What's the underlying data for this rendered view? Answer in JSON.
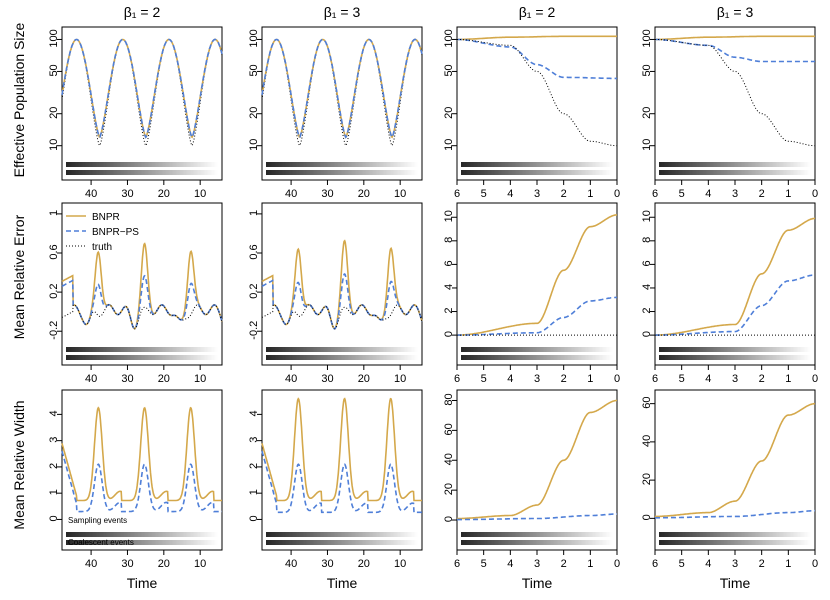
{
  "figure": {
    "x_label": "Time",
    "col_titles": [
      "β₁ = 2",
      "β₁ = 3",
      "β₁ = 2",
      "β₁ = 3"
    ],
    "row_labels": [
      "Effective Population Size",
      "Mean Relative Error",
      "Mean Relative Width"
    ],
    "legend": [
      "BNPR",
      "BNPR−PS",
      "truth"
    ],
    "strip_labels": [
      "Sampling events",
      "Coalescent events"
    ],
    "colors": {
      "bnpr": "#D4A84B",
      "bnpr_ps": "#4F7FD8",
      "truth": "#000000"
    }
  },
  "chart_data": [
    {
      "type": "line",
      "row": "Effective Population Size",
      "col_title": "β₁ = 2",
      "scale": "log",
      "x_ticks": [
        40,
        30,
        20,
        10
      ],
      "y_ticks": [
        10,
        20,
        50,
        100
      ],
      "x_range": [
        48,
        4
      ],
      "y_range": [
        8,
        115
      ],
      "series": [
        {
          "name": "truth",
          "values": [
            [
              47,
              13
            ],
            [
              44,
              100
            ],
            [
              37.5,
              10
            ],
            [
              31,
              100
            ],
            [
              24.7,
              10
            ],
            [
              18.3,
              100
            ],
            [
              12,
              10
            ],
            [
              5,
              100
            ]
          ]
        },
        {
          "name": "BNPR",
          "values": [
            [
              47,
              14
            ],
            [
              44,
              100
            ],
            [
              37.5,
              12
            ],
            [
              31,
              100
            ],
            [
              24.7,
              12
            ],
            [
              18.3,
              100
            ],
            [
              12,
              12
            ],
            [
              5,
              100
            ]
          ]
        },
        {
          "name": "BNPR−PS",
          "values": [
            [
              47,
              14
            ],
            [
              44,
              100
            ],
            [
              37.5,
              12
            ],
            [
              31,
              100
            ],
            [
              24.7,
              12
            ],
            [
              18.3,
              100
            ],
            [
              12,
              12
            ],
            [
              5,
              100
            ]
          ]
        }
      ]
    },
    {
      "type": "line",
      "row": "Effective Population Size",
      "col_title": "β₁ = 3",
      "scale": "log",
      "x_ticks": [
        40,
        30,
        20,
        10
      ],
      "y_ticks": [
        10,
        20,
        50,
        100
      ],
      "x_range": [
        48,
        4
      ],
      "y_range": [
        8,
        115
      ],
      "series": [
        {
          "name": "truth",
          "values": [
            [
              47,
              13
            ],
            [
              44,
              100
            ],
            [
              37.5,
              10
            ],
            [
              31,
              100
            ],
            [
              24.7,
              10
            ],
            [
              18.3,
              100
            ],
            [
              12,
              10
            ],
            [
              5,
              100
            ]
          ]
        },
        {
          "name": "BNPR",
          "values": [
            [
              47,
              14
            ],
            [
              44,
              100
            ],
            [
              37.5,
              12
            ],
            [
              31,
              100
            ],
            [
              24.7,
              12
            ],
            [
              18.3,
              100
            ],
            [
              12,
              12
            ],
            [
              5,
              100
            ]
          ]
        },
        {
          "name": "BNPR−PS",
          "values": [
            [
              47,
              14
            ],
            [
              44,
              100
            ],
            [
              37.5,
              12
            ],
            [
              31,
              100
            ],
            [
              24.7,
              12
            ],
            [
              18.3,
              100
            ],
            [
              12,
              12
            ],
            [
              5,
              100
            ]
          ]
        }
      ]
    },
    {
      "type": "line",
      "row": "Effective Population Size",
      "col_title": "β₁ = 2",
      "scale": "log",
      "x_ticks": [
        6,
        5,
        4,
        3,
        2,
        1,
        0
      ],
      "y_ticks": [
        10,
        20,
        50,
        100
      ],
      "x_range": [
        6,
        0
      ],
      "y_range": [
        8,
        115
      ],
      "series": [
        {
          "name": "BNPR",
          "values": [
            [
              6,
              100
            ],
            [
              4,
              105
            ],
            [
              2,
              107
            ],
            [
              0,
              107
            ]
          ]
        },
        {
          "name": "BNPR−PS",
          "values": [
            [
              6,
              100
            ],
            [
              4,
              85
            ],
            [
              3,
              58
            ],
            [
              2,
              44
            ],
            [
              0,
              43
            ]
          ]
        },
        {
          "name": "truth",
          "values": [
            [
              6,
              100
            ],
            [
              4,
              88
            ],
            [
              3,
              50
            ],
            [
              2,
              20
            ],
            [
              1,
              11
            ],
            [
              0,
              10
            ]
          ]
        }
      ]
    },
    {
      "type": "line",
      "row": "Effective Population Size",
      "col_title": "β₁ = 3",
      "scale": "log",
      "x_ticks": [
        6,
        5,
        4,
        3,
        2,
        1,
        0
      ],
      "y_ticks": [
        10,
        20,
        50,
        100
      ],
      "x_range": [
        6,
        0
      ],
      "y_range": [
        8,
        115
      ],
      "series": [
        {
          "name": "BNPR",
          "values": [
            [
              6,
              100
            ],
            [
              4,
              105
            ],
            [
              2,
              107
            ],
            [
              0,
              107
            ]
          ]
        },
        {
          "name": "BNPR−PS",
          "values": [
            [
              6,
              100
            ],
            [
              4,
              88
            ],
            [
              3,
              68
            ],
            [
              2,
              62
            ],
            [
              0,
              62
            ]
          ]
        },
        {
          "name": "truth",
          "values": [
            [
              6,
              100
            ],
            [
              4,
              88
            ],
            [
              3,
              50
            ],
            [
              2,
              20
            ],
            [
              1,
              11
            ],
            [
              0,
              10
            ]
          ]
        }
      ]
    },
    {
      "type": "line",
      "row": "Mean Relative Error",
      "col_title": "β₁ = 2",
      "x_ticks": [
        40,
        30,
        20,
        10
      ],
      "y_ticks": [
        -0.2,
        0.2,
        0.6,
        1.0
      ],
      "x_range": [
        48,
        4
      ],
      "y_range": [
        -0.3,
        1.05
      ],
      "series": [
        {
          "name": "BNPR",
          "values": [
            [
              47,
              0.37
            ],
            [
              38,
              0.65
            ],
            [
              25,
              0.65
            ],
            [
              12,
              0.65
            ],
            [
              5,
              0
            ]
          ]
        },
        {
          "name": "BNPR−PS",
          "values": [
            [
              47,
              0.32
            ],
            [
              38,
              0.32
            ],
            [
              25,
              0.32
            ],
            [
              12,
              0.32
            ],
            [
              5,
              0
            ]
          ]
        },
        {
          "name": "truth",
          "values": [
            [
              48,
              0
            ],
            [
              4,
              0
            ]
          ]
        }
      ]
    },
    {
      "type": "line",
      "row": "Mean Relative Error",
      "col_title": "β₁ = 3",
      "x_ticks": [
        40,
        30,
        20,
        10
      ],
      "y_ticks": [
        -0.2,
        0.2,
        0.6,
        1.0
      ],
      "x_range": [
        48,
        4
      ],
      "y_range": [
        -0.3,
        1.05
      ],
      "series": [
        {
          "name": "BNPR",
          "values": [
            [
              47,
              0.37
            ],
            [
              38,
              0.68
            ],
            [
              25,
              0.66
            ],
            [
              12,
              0.66
            ],
            [
              5,
              0
            ]
          ]
        },
        {
          "name": "BNPR−PS",
          "values": [
            [
              47,
              0.32
            ],
            [
              38,
              0.34
            ],
            [
              25,
              0.31
            ],
            [
              12,
              0.31
            ],
            [
              5,
              0
            ]
          ]
        },
        {
          "name": "truth",
          "values": [
            [
              48,
              0
            ],
            [
              4,
              0
            ]
          ]
        }
      ]
    },
    {
      "type": "line",
      "row": "Mean Relative Error",
      "col_title": "β₁ = 2",
      "x_ticks": [
        6,
        5,
        4,
        3,
        2,
        1,
        0
      ],
      "y_ticks": [
        0,
        2,
        4,
        6,
        8,
        10
      ],
      "x_range": [
        6,
        0
      ],
      "y_range": [
        -0.5,
        10.7
      ],
      "series": [
        {
          "name": "BNPR",
          "values": [
            [
              6,
              0
            ],
            [
              3,
              1.0
            ],
            [
              2,
              5.5
            ],
            [
              1,
              9.2
            ],
            [
              0,
              10.2
            ]
          ]
        },
        {
          "name": "BNPR−PS",
          "values": [
            [
              6,
              0
            ],
            [
              3,
              0.2
            ],
            [
              2,
              1.5
            ],
            [
              1,
              2.9
            ],
            [
              0,
              3.2
            ]
          ]
        },
        {
          "name": "truth",
          "values": [
            [
              6,
              0
            ],
            [
              0,
              0
            ]
          ]
        }
      ]
    },
    {
      "type": "line",
      "row": "Mean Relative Error",
      "col_title": "β₁ = 3",
      "x_ticks": [
        6,
        5,
        4,
        3,
        2,
        1,
        0
      ],
      "y_ticks": [
        0,
        2,
        4,
        6,
        8,
        10
      ],
      "x_range": [
        6,
        0
      ],
      "y_range": [
        -0.5,
        10.7
      ],
      "series": [
        {
          "name": "BNPR",
          "values": [
            [
              6,
              0
            ],
            [
              3,
              0.9
            ],
            [
              2,
              5.2
            ],
            [
              1,
              8.9
            ],
            [
              0,
              9.9
            ]
          ]
        },
        {
          "name": "BNPR−PS",
          "values": [
            [
              6,
              0
            ],
            [
              3,
              0.3
            ],
            [
              2,
              2.5
            ],
            [
              1,
              4.6
            ],
            [
              0,
              5.1
            ]
          ]
        },
        {
          "name": "truth",
          "values": [
            [
              6,
              0
            ],
            [
              0,
              0
            ]
          ]
        }
      ]
    },
    {
      "type": "line",
      "row": "Mean Relative Width",
      "col_title": "β₁ = 2",
      "x_ticks": [
        40,
        30,
        20,
        10
      ],
      "y_ticks": [
        0,
        1,
        2,
        3,
        4
      ],
      "x_range": [
        48,
        4
      ],
      "y_range": [
        -0.25,
        4.7
      ],
      "series": [
        {
          "name": "BNPR",
          "values": [
            [
              47,
              2.4
            ],
            [
              38,
              4.25
            ],
            [
              25,
              4.25
            ],
            [
              12,
              4.25
            ],
            [
              5,
              1.2
            ]
          ]
        },
        {
          "name": "BNPR−PS",
          "values": [
            [
              47,
              2.1
            ],
            [
              38,
              1.8
            ],
            [
              25,
              1.8
            ],
            [
              12,
              1.8
            ],
            [
              5,
              0.5
            ]
          ]
        }
      ]
    },
    {
      "type": "line",
      "row": "Mean Relative Width",
      "col_title": "β₁ = 3",
      "x_ticks": [
        40,
        30,
        20,
        10
      ],
      "y_ticks": [
        0,
        1,
        2,
        3,
        4
      ],
      "x_range": [
        48,
        4
      ],
      "y_range": [
        -0.25,
        4.7
      ],
      "series": [
        {
          "name": "BNPR",
          "values": [
            [
              47,
              2.4
            ],
            [
              38,
              4.6
            ],
            [
              25,
              4.4
            ],
            [
              12,
              4.3
            ],
            [
              5,
              1.2
            ]
          ]
        },
        {
          "name": "BNPR−PS",
          "values": [
            [
              47,
              2.1
            ],
            [
              38,
              1.95
            ],
            [
              25,
              1.85
            ],
            [
              12,
              1.85
            ],
            [
              5,
              0.45
            ]
          ]
        }
      ]
    },
    {
      "type": "line",
      "row": "Mean Relative Width",
      "col_title": "β₁ = 2",
      "x_ticks": [
        6,
        5,
        4,
        3,
        2,
        1,
        0
      ],
      "y_ticks": [
        0,
        20,
        40,
        60,
        80
      ],
      "x_range": [
        6,
        0
      ],
      "y_range": [
        -4,
        83
      ],
      "series": [
        {
          "name": "BNPR",
          "values": [
            [
              6,
              1
            ],
            [
              4,
              3
            ],
            [
              3,
              10
            ],
            [
              2,
              40
            ],
            [
              1,
              72
            ],
            [
              0,
              80
            ]
          ]
        },
        {
          "name": "BNPR−PS",
          "values": [
            [
              6,
              0.3
            ],
            [
              3,
              1
            ],
            [
              1,
              3
            ],
            [
              0,
              4
            ]
          ]
        }
      ]
    },
    {
      "type": "line",
      "row": "Mean Relative Width",
      "col_title": "β₁ = 3",
      "x_ticks": [
        6,
        5,
        4,
        3,
        2,
        1,
        0
      ],
      "y_ticks": [
        0,
        20,
        40,
        60
      ],
      "x_range": [
        6,
        0
      ],
      "y_range": [
        -4,
        64
      ],
      "series": [
        {
          "name": "BNPR",
          "values": [
            [
              6,
              1
            ],
            [
              4,
              3
            ],
            [
              3,
              9
            ],
            [
              2,
              30
            ],
            [
              1,
              54
            ],
            [
              0,
              60
            ]
          ]
        },
        {
          "name": "BNPR−PS",
          "values": [
            [
              6,
              0.3
            ],
            [
              3,
              1
            ],
            [
              1,
              3
            ],
            [
              0,
              4
            ]
          ]
        }
      ]
    }
  ]
}
